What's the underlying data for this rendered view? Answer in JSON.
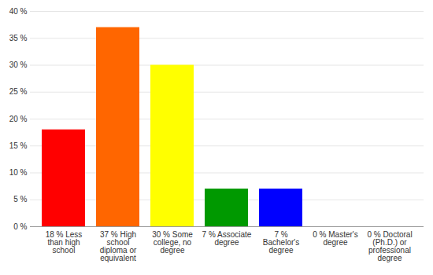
{
  "chart_data": {
    "type": "bar",
    "categories": [
      "18 % Less than high school",
      "37 % High school diploma or equivalent",
      "30 % Some college, no degree",
      "7 % Associate degree",
      "7 % Bachelor's degree",
      "0 % Master's degree",
      "0 % Doctoral (Ph.D.) or professional degree"
    ],
    "values": [
      18,
      37,
      30,
      7,
      7,
      0,
      0
    ],
    "colors": [
      "#ff0000",
      "#ff6600",
      "#ffff00",
      "#009900",
      "#0000ff",
      "#9900ff",
      "#ff00ff"
    ],
    "ylim": [
      0,
      40
    ],
    "yticks": [
      {
        "value": 0,
        "label": "0 %"
      },
      {
        "value": 5,
        "label": "5 %"
      },
      {
        "value": 10,
        "label": "10 %"
      },
      {
        "value": 15,
        "label": "15 %"
      },
      {
        "value": 20,
        "label": "20 %"
      },
      {
        "value": 25,
        "label": "25 %"
      },
      {
        "value": 30,
        "label": "30 %"
      },
      {
        "value": 35,
        "label": "35 %"
      },
      {
        "value": 40,
        "label": "40 %"
      }
    ],
    "grid": true
  }
}
